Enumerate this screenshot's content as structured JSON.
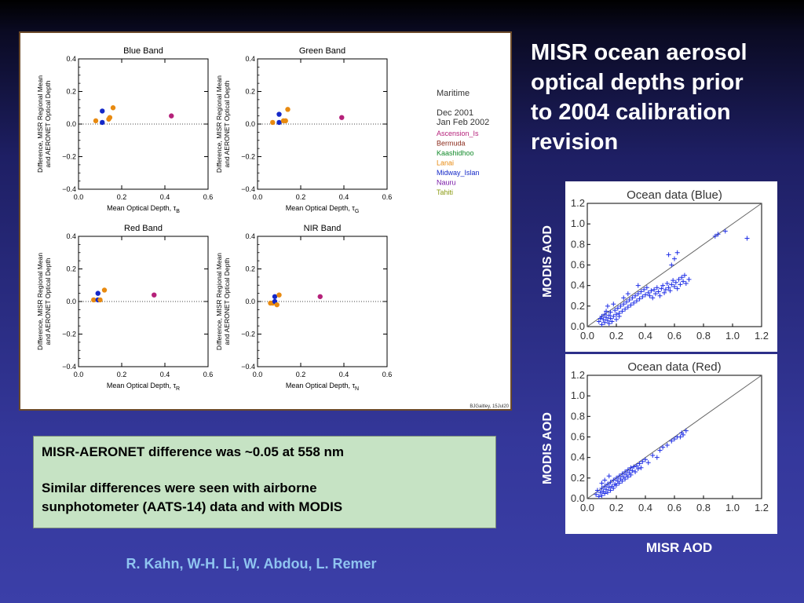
{
  "slide": {
    "title_lines": [
      "MISR ocean aerosol",
      "optical depths prior",
      "to 2004 calibration",
      "revision"
    ],
    "summary_line1": "MISR-AERONET difference was ~0.05 at 558 nm",
    "summary_line2": "Similar differences were seen with airborne",
    "summary_line3": "sunphotometer (AATS-14) data and with MODIS",
    "authors": "R. Kahn, W-H. Li, W. Abdou, L. Remer",
    "modis_label": "MODIS AOD",
    "misr_label": "MISR AOD",
    "credit": "BJGaitley, 15Jul20"
  },
  "legend": {
    "header": "Maritime",
    "date_lines": [
      "Dec 2001",
      "Jan Feb 2002"
    ],
    "sites": [
      {
        "name": "Ascension_Is",
        "color": "#b5217a"
      },
      {
        "name": "Bermuda",
        "color": "#8b2a1a"
      },
      {
        "name": "Kaashidhoo",
        "color": "#128a2a"
      },
      {
        "name": "Lanai",
        "color": "#e88a10"
      },
      {
        "name": "Midway_Islan",
        "color": "#1428c8"
      },
      {
        "name": "Nauru",
        "color": "#7a1aa8"
      },
      {
        "name": "Tahiti",
        "color": "#8a9a10"
      }
    ]
  },
  "chart_data": [
    {
      "type": "scatter",
      "title": "Blue Band",
      "xlabel": "Mean Optical Depth, τ",
      "xlabel_sub": "B",
      "ylabel_lines": [
        "Difference, MISR Regional Mean",
        "and AERONET Optical Depth"
      ],
      "xlim": [
        0,
        0.6
      ],
      "ylim": [
        -0.4,
        0.4
      ],
      "xticks": [
        "0.0",
        "0.2",
        "0.4",
        "0.6"
      ],
      "yticks": [
        "0.4",
        "0.2",
        "0.0",
        "−0.2",
        "−0.4"
      ],
      "points": [
        {
          "x": 0.08,
          "y": 0.02,
          "color": "#e88a10"
        },
        {
          "x": 0.11,
          "y": 0.08,
          "color": "#1428c8"
        },
        {
          "x": 0.11,
          "y": 0.01,
          "color": "#1428c8"
        },
        {
          "x": 0.14,
          "y": 0.03,
          "color": "#e88a10"
        },
        {
          "x": 0.145,
          "y": 0.04,
          "color": "#e88a10"
        },
        {
          "x": 0.16,
          "y": 0.1,
          "color": "#e88a10"
        },
        {
          "x": 0.43,
          "y": 0.05,
          "color": "#b5217a"
        }
      ]
    },
    {
      "type": "scatter",
      "title": "Green Band",
      "xlabel": "Mean Optical Depth, τ",
      "xlabel_sub": "G",
      "ylabel_lines": [
        "Difference, MISR Regional Mean",
        "and AERONET Optical Depth"
      ],
      "xlim": [
        0,
        0.6
      ],
      "ylim": [
        -0.4,
        0.4
      ],
      "xticks": [
        "0.0",
        "0.2",
        "0.4",
        "0.6"
      ],
      "yticks": [
        "0.4",
        "0.2",
        "0.0",
        "−0.2",
        "−0.4"
      ],
      "points": [
        {
          "x": 0.07,
          "y": 0.01,
          "color": "#e88a10"
        },
        {
          "x": 0.1,
          "y": 0.06,
          "color": "#1428c8"
        },
        {
          "x": 0.1,
          "y": 0.01,
          "color": "#1428c8"
        },
        {
          "x": 0.12,
          "y": 0.02,
          "color": "#e88a10"
        },
        {
          "x": 0.13,
          "y": 0.02,
          "color": "#e88a10"
        },
        {
          "x": 0.14,
          "y": 0.09,
          "color": "#e88a10"
        },
        {
          "x": 0.39,
          "y": 0.04,
          "color": "#b5217a"
        }
      ]
    },
    {
      "type": "scatter",
      "title": "Red Band",
      "xlabel": "Mean Optical Depth, τ",
      "xlabel_sub": "R",
      "ylabel_lines": [
        "Difference, MISR Regional Mean",
        "and AERONET Optical Depth"
      ],
      "xlim": [
        0,
        0.6
      ],
      "ylim": [
        -0.4,
        0.4
      ],
      "xticks": [
        "0.0",
        "0.2",
        "0.4",
        "0.6"
      ],
      "yticks": [
        "0.4",
        "0.2",
        "0.0",
        "−0.2",
        "−0.4"
      ],
      "points": [
        {
          "x": 0.07,
          "y": 0.01,
          "color": "#e88a10"
        },
        {
          "x": 0.09,
          "y": 0.05,
          "color": "#1428c8"
        },
        {
          "x": 0.09,
          "y": 0.01,
          "color": "#1428c8"
        },
        {
          "x": 0.1,
          "y": 0.01,
          "color": "#e88a10"
        },
        {
          "x": 0.12,
          "y": 0.07,
          "color": "#e88a10"
        },
        {
          "x": 0.35,
          "y": 0.04,
          "color": "#b5217a"
        }
      ]
    },
    {
      "type": "scatter",
      "title": "NIR Band",
      "xlabel": "Mean Optical Depth, τ",
      "xlabel_sub": "N",
      "ylabel_lines": [
        "Difference, MISR Regional Mean",
        "and AERONET Optical Depth"
      ],
      "xlim": [
        0,
        0.6
      ],
      "ylim": [
        -0.4,
        0.4
      ],
      "xticks": [
        "0.0",
        "0.2",
        "0.4",
        "0.6"
      ],
      "yticks": [
        "0.4",
        "0.2",
        "0.0",
        "−0.2",
        "−0.4"
      ],
      "points": [
        {
          "x": 0.06,
          "y": -0.01,
          "color": "#e88a10"
        },
        {
          "x": 0.07,
          "y": -0.01,
          "color": "#e88a10"
        },
        {
          "x": 0.08,
          "y": 0.03,
          "color": "#1428c8"
        },
        {
          "x": 0.08,
          "y": 0.0,
          "color": "#1428c8"
        },
        {
          "x": 0.09,
          "y": -0.02,
          "color": "#e88a10"
        },
        {
          "x": 0.1,
          "y": 0.04,
          "color": "#e88a10"
        },
        {
          "x": 0.29,
          "y": 0.03,
          "color": "#b5217a"
        }
      ]
    },
    {
      "type": "scatter",
      "title": "Ocean data (Blue)",
      "xlim": [
        0,
        1.2
      ],
      "ylim": [
        0,
        1.2
      ],
      "xticks": [
        "0.0",
        "0.2",
        "0.4",
        "0.6",
        "0.8",
        "1.0",
        "1.2"
      ],
      "yticks": [
        "1.2",
        "1.0",
        "0.8",
        "0.6",
        "0.4",
        "0.2",
        "0.0"
      ],
      "marker": "+",
      "color": "#1f2fe6",
      "reference_line": "1:1",
      "points": [
        [
          0.08,
          0.05
        ],
        [
          0.09,
          0.08
        ],
        [
          0.1,
          0.1
        ],
        [
          0.1,
          0.02
        ],
        [
          0.11,
          0.07
        ],
        [
          0.12,
          0.12
        ],
        [
          0.12,
          0.04
        ],
        [
          0.13,
          0.09
        ],
        [
          0.13,
          0.15
        ],
        [
          0.14,
          0.06
        ],
        [
          0.15,
          0.11
        ],
        [
          0.15,
          0.03
        ],
        [
          0.16,
          0.08
        ],
        [
          0.16,
          0.14
        ],
        [
          0.17,
          0.05
        ],
        [
          0.18,
          0.1
        ],
        [
          0.19,
          0.16
        ],
        [
          0.2,
          0.12
        ],
        [
          0.2,
          0.07
        ],
        [
          0.21,
          0.18
        ],
        [
          0.22,
          0.13
        ],
        [
          0.23,
          0.2
        ],
        [
          0.24,
          0.15
        ],
        [
          0.25,
          0.22
        ],
        [
          0.26,
          0.17
        ],
        [
          0.27,
          0.24
        ],
        [
          0.28,
          0.19
        ],
        [
          0.29,
          0.26
        ],
        [
          0.3,
          0.21
        ],
        [
          0.31,
          0.28
        ],
        [
          0.32,
          0.23
        ],
        [
          0.33,
          0.3
        ],
        [
          0.34,
          0.25
        ],
        [
          0.35,
          0.32
        ],
        [
          0.36,
          0.27
        ],
        [
          0.37,
          0.34
        ],
        [
          0.38,
          0.29
        ],
        [
          0.39,
          0.36
        ],
        [
          0.4,
          0.31
        ],
        [
          0.41,
          0.38
        ],
        [
          0.42,
          0.33
        ],
        [
          0.43,
          0.3
        ],
        [
          0.44,
          0.35
        ],
        [
          0.45,
          0.28
        ],
        [
          0.46,
          0.36
        ],
        [
          0.47,
          0.32
        ],
        [
          0.48,
          0.38
        ],
        [
          0.49,
          0.34
        ],
        [
          0.5,
          0.3
        ],
        [
          0.51,
          0.37
        ],
        [
          0.52,
          0.4
        ],
        [
          0.53,
          0.33
        ],
        [
          0.54,
          0.36
        ],
        [
          0.55,
          0.42
        ],
        [
          0.56,
          0.38
        ],
        [
          0.57,
          0.35
        ],
        [
          0.58,
          0.41
        ],
        [
          0.59,
          0.45
        ],
        [
          0.6,
          0.39
        ],
        [
          0.61,
          0.43
        ],
        [
          0.62,
          0.37
        ],
        [
          0.63,
          0.46
        ],
        [
          0.64,
          0.41
        ],
        [
          0.65,
          0.48
        ],
        [
          0.66,
          0.44
        ],
        [
          0.67,
          0.5
        ],
        [
          0.68,
          0.42
        ],
        [
          0.7,
          0.46
        ],
        [
          0.58,
          0.6
        ],
        [
          0.6,
          0.66
        ],
        [
          0.62,
          0.72
        ],
        [
          0.56,
          0.7
        ],
        [
          0.9,
          0.9
        ],
        [
          0.95,
          0.93
        ],
        [
          1.1,
          0.86
        ],
        [
          0.88,
          0.88
        ],
        [
          0.35,
          0.4
        ],
        [
          0.28,
          0.32
        ],
        [
          0.18,
          0.22
        ],
        [
          0.22,
          0.1
        ],
        [
          0.14,
          0.2
        ],
        [
          0.25,
          0.28
        ]
      ]
    },
    {
      "type": "scatter",
      "title": "Ocean data (Red)",
      "xlim": [
        0,
        1.2
      ],
      "ylim": [
        0,
        1.2
      ],
      "xticks": [
        "0.0",
        "0.2",
        "0.4",
        "0.6",
        "0.8",
        "1.0",
        "1.2"
      ],
      "yticks": [
        "1.2",
        "1.0",
        "0.8",
        "0.6",
        "0.4",
        "0.2",
        "0.0"
      ],
      "marker": "+",
      "color": "#1f2fe6",
      "reference_line": "1:1",
      "points": [
        [
          0.06,
          0.04
        ],
        [
          0.07,
          0.08
        ],
        [
          0.08,
          0.02
        ],
        [
          0.09,
          0.06
        ],
        [
          0.1,
          0.1
        ],
        [
          0.1,
          0.03
        ],
        [
          0.11,
          0.07
        ],
        [
          0.12,
          0.12
        ],
        [
          0.12,
          0.05
        ],
        [
          0.13,
          0.09
        ],
        [
          0.14,
          0.14
        ],
        [
          0.14,
          0.06
        ],
        [
          0.15,
          0.11
        ],
        [
          0.16,
          0.08
        ],
        [
          0.16,
          0.16
        ],
        [
          0.17,
          0.12
        ],
        [
          0.18,
          0.18
        ],
        [
          0.18,
          0.1
        ],
        [
          0.19,
          0.14
        ],
        [
          0.2,
          0.2
        ],
        [
          0.2,
          0.13
        ],
        [
          0.21,
          0.17
        ],
        [
          0.22,
          0.22
        ],
        [
          0.22,
          0.15
        ],
        [
          0.23,
          0.19
        ],
        [
          0.24,
          0.24
        ],
        [
          0.24,
          0.17
        ],
        [
          0.25,
          0.21
        ],
        [
          0.26,
          0.26
        ],
        [
          0.26,
          0.19
        ],
        [
          0.27,
          0.23
        ],
        [
          0.28,
          0.28
        ],
        [
          0.28,
          0.21
        ],
        [
          0.29,
          0.25
        ],
        [
          0.3,
          0.3
        ],
        [
          0.3,
          0.23
        ],
        [
          0.31,
          0.27
        ],
        [
          0.32,
          0.31
        ],
        [
          0.33,
          0.26
        ],
        [
          0.34,
          0.32
        ],
        [
          0.35,
          0.29
        ],
        [
          0.36,
          0.34
        ],
        [
          0.37,
          0.3
        ],
        [
          0.38,
          0.36
        ],
        [
          0.4,
          0.38
        ],
        [
          0.42,
          0.35
        ],
        [
          0.45,
          0.42
        ],
        [
          0.48,
          0.4
        ],
        [
          0.5,
          0.47
        ],
        [
          0.52,
          0.5
        ],
        [
          0.55,
          0.52
        ],
        [
          0.58,
          0.56
        ],
        [
          0.6,
          0.58
        ],
        [
          0.62,
          0.6
        ],
        [
          0.65,
          0.64
        ],
        [
          0.68,
          0.66
        ],
        [
          0.66,
          0.62
        ],
        [
          0.64,
          0.6
        ],
        [
          0.15,
          0.22
        ],
        [
          0.12,
          0.18
        ],
        [
          0.1,
          0.15
        ]
      ]
    }
  ]
}
